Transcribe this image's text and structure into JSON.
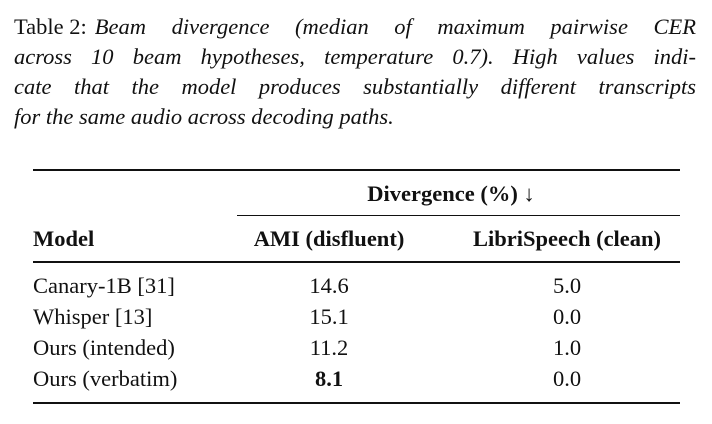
{
  "caption": {
    "label": "Table 2:",
    "lines": [
      "Beam divergence (median of maximum pairwise CER",
      "across 10 beam hypotheses, temperature 0.7). High values indi-",
      "cate that the model produces substantially different transcripts",
      "for the same audio across decoding paths."
    ]
  },
  "table": {
    "group_header": "Divergence (%) ↓",
    "columns": [
      "Model",
      "AMI (disfluent)",
      "LibriSpeech (clean)"
    ],
    "rows": [
      [
        "Canary-1B [31]",
        "14.6",
        "5.0"
      ],
      [
        "Whisper [13]",
        "15.1",
        "0.0"
      ],
      [
        "Ours (intended)",
        "11.2",
        "1.0"
      ],
      [
        "Ours (verbatim)",
        "8.1",
        "0.0"
      ]
    ]
  }
}
